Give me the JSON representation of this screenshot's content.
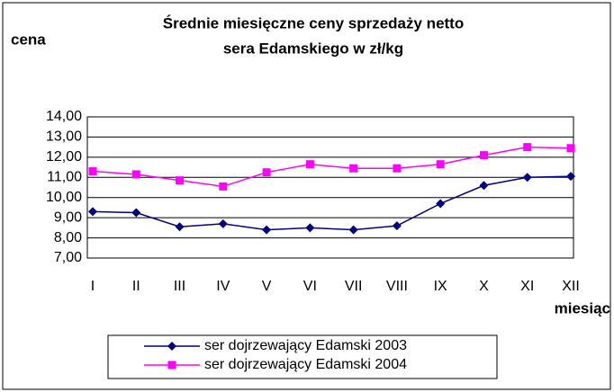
{
  "chart_data": {
    "type": "line",
    "title": [
      "Średnie miesięczne ceny sprzedaży netto",
      "sera Edamskiego w zł/kg"
    ],
    "y_label": "cena",
    "x_label": "miesiąc",
    "categories": [
      "I",
      "II",
      "III",
      "IV",
      "V",
      "VI",
      "VII",
      "VIII",
      "IX",
      "X",
      "XI",
      "XII"
    ],
    "series": [
      {
        "name": "ser dojrzewający Edamski 2003",
        "color": "#000080",
        "marker": "diamond",
        "values": [
          9.3,
          9.25,
          8.55,
          8.7,
          8.4,
          8.5,
          8.4,
          8.6,
          9.7,
          10.6,
          11.0,
          11.05
        ]
      },
      {
        "name": "ser dojrzewający Edamski 2004",
        "color": "#ff00ff",
        "marker": "square",
        "values": [
          11.3,
          11.15,
          10.85,
          10.55,
          11.25,
          11.65,
          11.45,
          11.45,
          11.65,
          12.1,
          12.5,
          12.45
        ]
      }
    ],
    "ylim": [
      7,
      14
    ],
    "yticks": [
      {
        "value": 7,
        "label": "7,00"
      },
      {
        "value": 8,
        "label": "8,00"
      },
      {
        "value": 9,
        "label": "9,00"
      },
      {
        "value": 10,
        "label": "10,00"
      },
      {
        "value": 11,
        "label": "11,00"
      },
      {
        "value": 12,
        "label": "12,00"
      },
      {
        "value": 13,
        "label": "13,00"
      },
      {
        "value": 14,
        "label": "14,00"
      }
    ],
    "grid": true,
    "legend": "bottom"
  }
}
